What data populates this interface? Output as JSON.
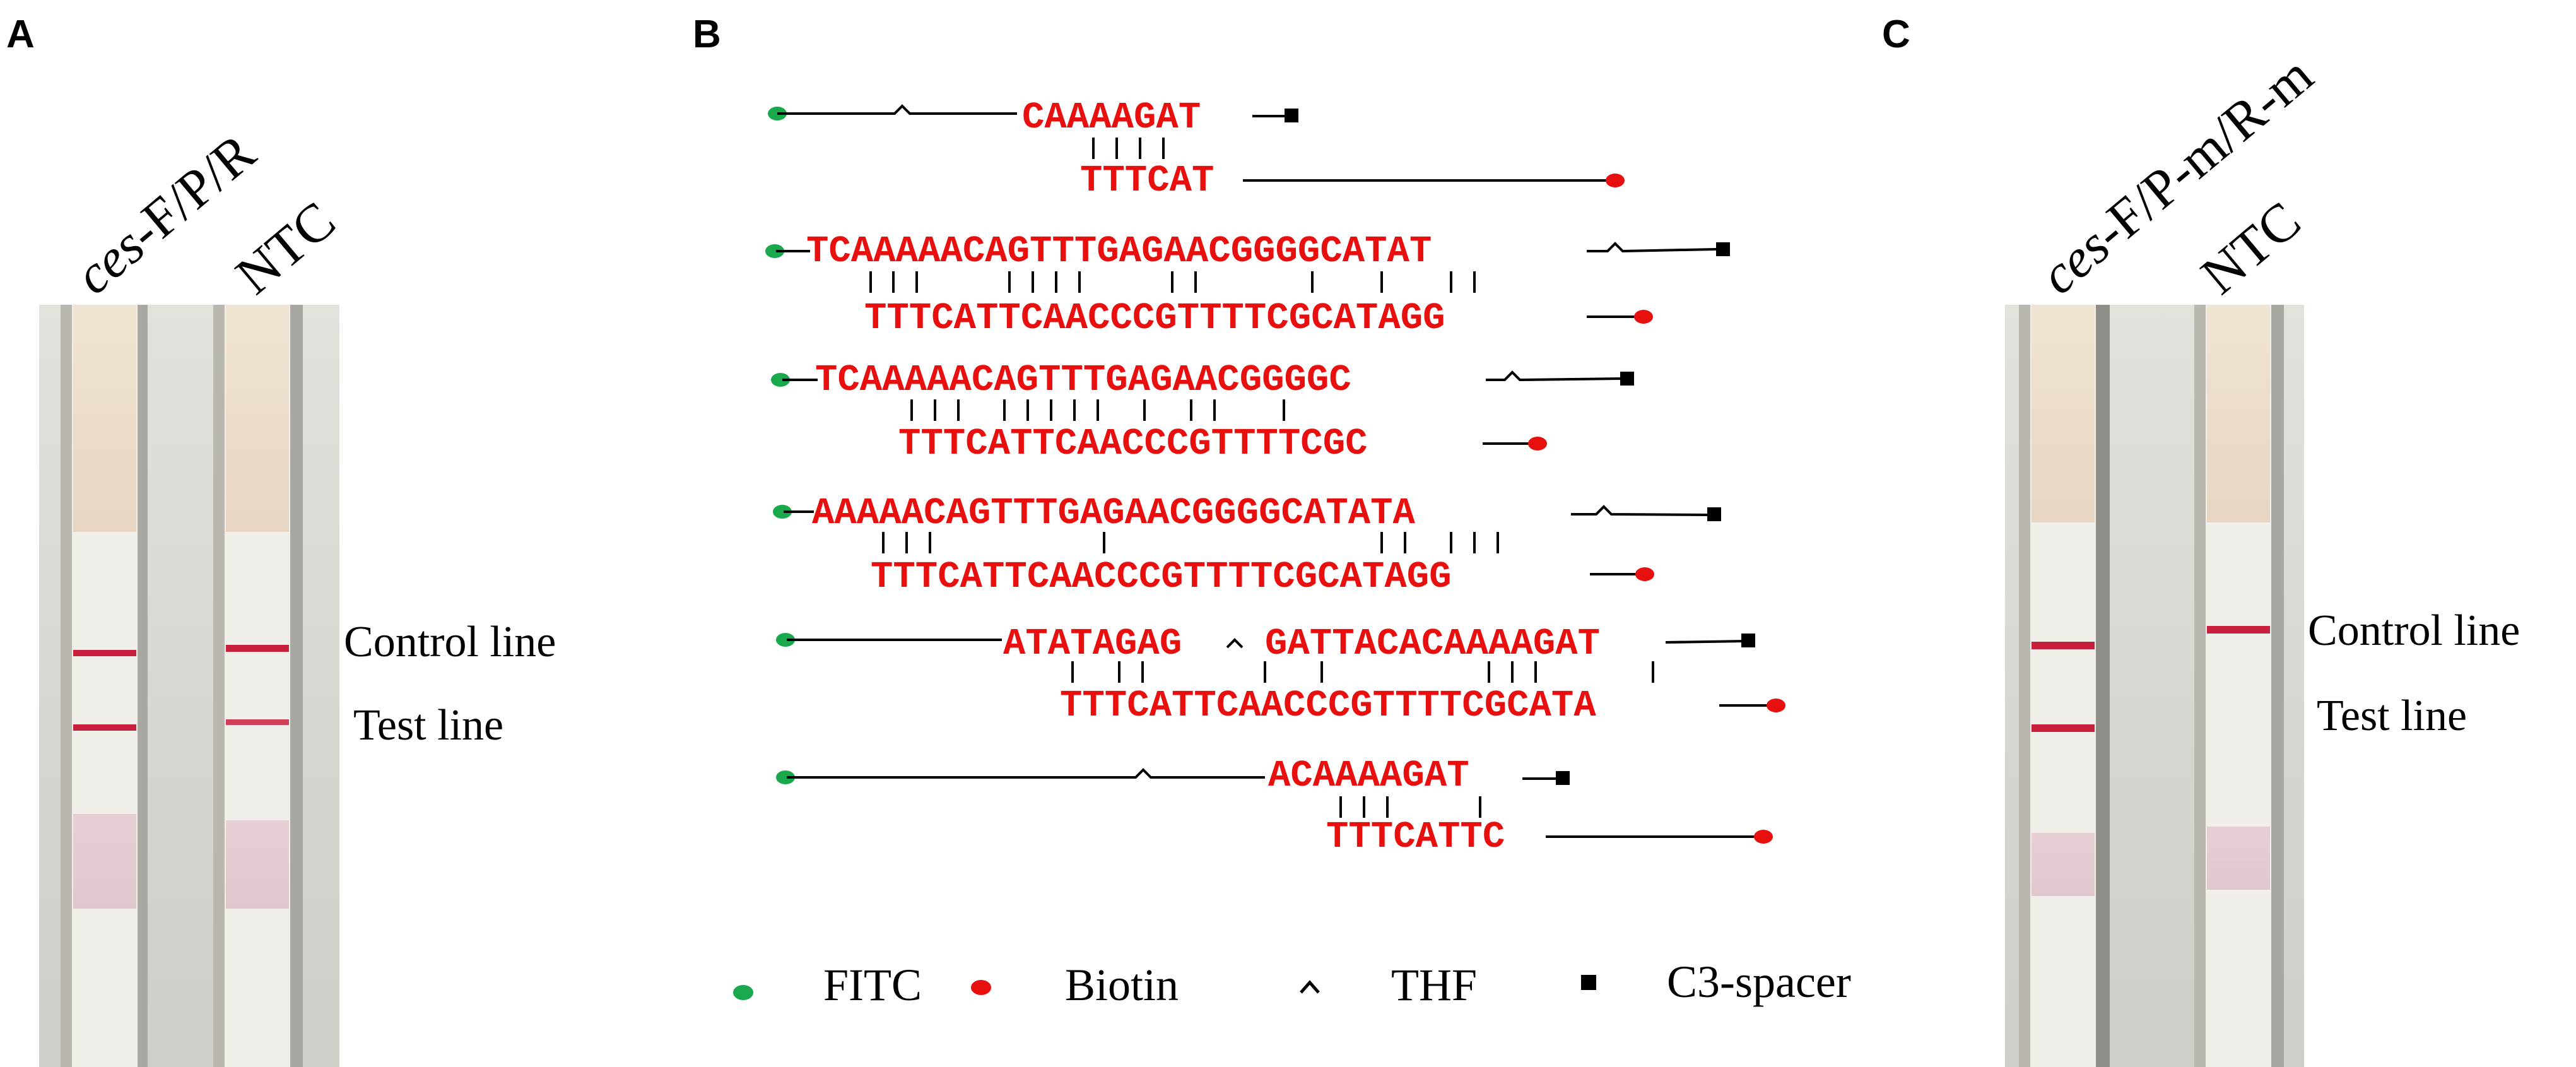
{
  "panels": {
    "a": {
      "letter": "A",
      "labels": {
        "sample": "ces-F/P/R",
        "sample_italic": "ces",
        "sample_rest": "-F/P/R",
        "ntc": "NTC"
      },
      "line_labels": {
        "control": "Control line",
        "test": "Test line"
      }
    },
    "b": {
      "letter": "B",
      "legend": {
        "fitc": "FITC",
        "biotin": "Biotin",
        "thf": "THF",
        "spacer": "C3-spacer"
      }
    },
    "c": {
      "letter": "C",
      "labels": {
        "sample": "ces-F/P-m/R-m",
        "sample_italic": "ces",
        "sample_rest": "-F/P-m/R-m",
        "ntc": "NTC"
      },
      "line_labels": {
        "control": "Control line",
        "test": "Test line"
      }
    }
  },
  "colors": {
    "sequence": "#e8100f",
    "fitc": "#19a94c",
    "biotin": "#e8100f",
    "test_band": "#c8203c",
    "strip_background": "#d7d6d0"
  },
  "duplexes": [
    {
      "top": "CAAAAGAT",
      "bottom": "TTTCAT",
      "top_pos": [
        1620,
        190
      ],
      "bottom_pos": [
        1712,
        290
      ]
    },
    {
      "top": "TCAAAAACAGTTTGAGAACGGGGCATAT",
      "bottom": "TTTCATTCAACCCGTTTTCGCATAGG",
      "top_pos": [
        1278,
        402
      ],
      "bottom_pos": [
        1370,
        508
      ]
    },
    {
      "top": "TCAAAAACAGTTTGAGAACGGGGC",
      "bottom": "TTTCATTCAACCCGTTTTCGC",
      "top_pos": [
        1292,
        606
      ],
      "bottom_pos": [
        1424,
        707
      ]
    },
    {
      "top": "AAAAACAGTTTGAGAACGGGGCATATA",
      "bottom": "TTTCATTCAACCCGTTTTCGCATAGG",
      "top_pos": [
        1287,
        817
      ],
      "bottom_pos": [
        1380,
        918
      ]
    },
    {
      "top": "ATATAGAG",
      "top2": "GATTACACAAAAGAT",
      "bottom": "TTTCATTCAACCCGTTTTCGCATA",
      "top_pos": [
        1590,
        1024
      ],
      "top2_pos": [
        2005,
        1024
      ],
      "bottom_pos": [
        1680,
        1122
      ]
    },
    {
      "top": "ACAAAAGAT",
      "bottom": "TTTCATTC",
      "top_pos": [
        2010,
        1233
      ],
      "bottom_pos": [
        2102,
        1330
      ]
    }
  ]
}
